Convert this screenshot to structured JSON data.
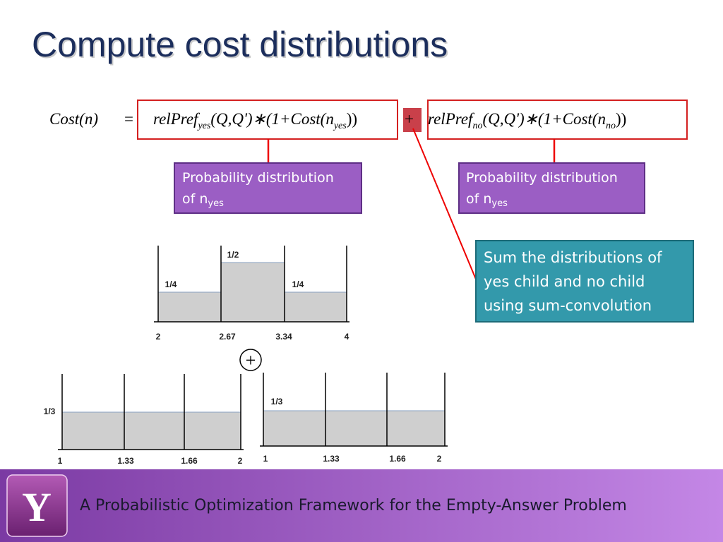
{
  "title": "Compute cost distributions",
  "formula": {
    "lhs": "Cost(n)",
    "eq": "=",
    "term_yes": {
      "a": "relPref",
      "sub1": "yes",
      "b": "(Q,Q')∗(1+Cost(n",
      "sub2": "yes",
      "c": "))"
    },
    "plus": "+",
    "term_no": {
      "a": "relPref",
      "sub1": "no",
      "b": "(Q,Q')∗(1+Cost(n",
      "sub2": "no",
      "c": "))"
    }
  },
  "callouts": [
    {
      "text": "Probability distribution of n",
      "sub": "yes"
    },
    {
      "text": "Probability distribution of n",
      "sub": "yes"
    }
  ],
  "note": [
    "Sum the distributions of",
    "yes child and no child",
    "using sum-convolution"
  ],
  "histograms": [
    {
      "bar_labels": [
        "1/4",
        "1/2",
        "1/4"
      ],
      "x_labels": [
        "2",
        "2.67",
        "3.34",
        "4"
      ]
    },
    {
      "bar_labels": [
        "1/3"
      ],
      "x_labels": [
        "1",
        "1.33",
        "1.66",
        "2"
      ]
    },
    {
      "bar_labels": [
        "1/3"
      ],
      "x_labels": [
        "1",
        "1.33",
        "1.66",
        "2"
      ]
    }
  ],
  "operator": "+",
  "footer": {
    "logo": "Y",
    "text": "A Probabilistic Optimization Framework for the Empty-Answer Problem"
  }
}
